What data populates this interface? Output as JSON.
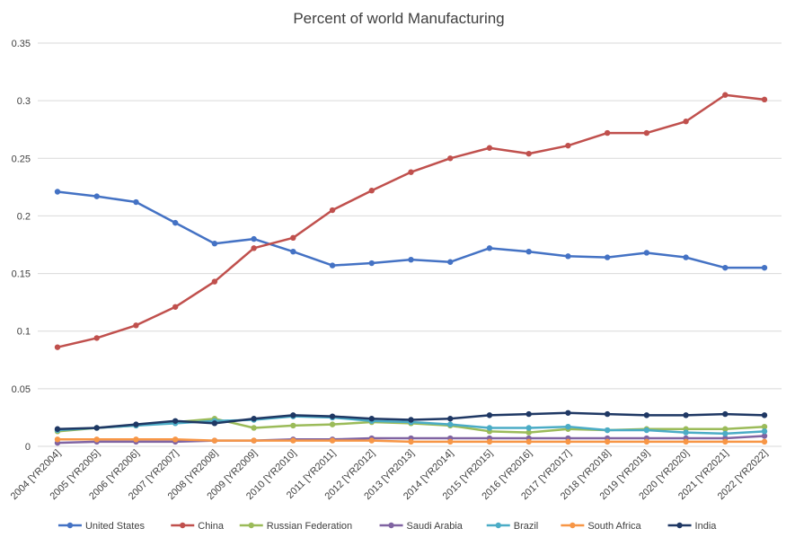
{
  "chart_data": {
    "type": "line",
    "title": "Percent of world Manufacturing",
    "xlabel": "",
    "ylabel": "",
    "ylim": [
      0,
      0.35
    ],
    "yticks": [
      "0",
      "0.05",
      "0.1",
      "0.15",
      "0.2",
      "0.25",
      "0.3",
      "0.35"
    ],
    "grid": true,
    "legend_position": "bottom",
    "categories": [
      "2004 [YR2004]",
      "2005 [YR2005]",
      "2006 [YR2006]",
      "2007 [YR2007]",
      "2008 [YR2008]",
      "2009 [YR2009]",
      "2010 [YR2010]",
      "2011 [YR2011]",
      "2012 [YR2012]",
      "2013 [YR2013]",
      "2014 [YR2014]",
      "2015 [YR2015]",
      "2016 [YR2016]",
      "2017 [YR2017]",
      "2018 [YR2018]",
      "2019 [YR2019]",
      "2020 [YR2020]",
      "2021 [YR2021]",
      "2022 [YR2022]"
    ],
    "series": [
      {
        "name": "United States",
        "color": "#4472c4",
        "values": [
          0.221,
          0.217,
          0.212,
          0.194,
          0.176,
          0.18,
          0.169,
          0.157,
          0.159,
          0.162,
          0.16,
          0.172,
          0.169,
          0.165,
          0.164,
          0.168,
          0.164,
          0.155,
          0.155
        ]
      },
      {
        "name": "China",
        "color": "#c0504d",
        "values": [
          0.086,
          0.094,
          0.105,
          0.121,
          0.143,
          0.172,
          0.181,
          0.205,
          0.222,
          0.238,
          0.25,
          0.259,
          0.254,
          0.261,
          0.272,
          0.272,
          0.282,
          0.305,
          0.301
        ]
      },
      {
        "name": "Russian Federation",
        "color": "#9bbb59",
        "values": [
          0.013,
          0.016,
          0.018,
          0.021,
          0.024,
          0.016,
          0.018,
          0.019,
          0.021,
          0.02,
          0.018,
          0.013,
          0.012,
          0.015,
          0.014,
          0.015,
          0.015,
          0.015,
          0.017
        ]
      },
      {
        "name": "Saudi Arabia",
        "color": "#8064a2",
        "values": [
          0.003,
          0.004,
          0.004,
          0.004,
          0.005,
          0.005,
          0.006,
          0.006,
          0.007,
          0.007,
          0.007,
          0.007,
          0.007,
          0.007,
          0.007,
          0.007,
          0.007,
          0.007,
          0.009
        ]
      },
      {
        "name": "Brazil",
        "color": "#4bacc6",
        "values": [
          0.014,
          0.016,
          0.018,
          0.02,
          0.022,
          0.023,
          0.026,
          0.025,
          0.022,
          0.021,
          0.019,
          0.016,
          0.016,
          0.017,
          0.014,
          0.014,
          0.012,
          0.011,
          0.013
        ]
      },
      {
        "name": "South Africa",
        "color": "#f79646",
        "values": [
          0.006,
          0.006,
          0.006,
          0.006,
          0.005,
          0.005,
          0.005,
          0.005,
          0.005,
          0.004,
          0.004,
          0.004,
          0.004,
          0.004,
          0.004,
          0.004,
          0.004,
          0.004,
          0.004
        ]
      },
      {
        "name": "India",
        "color": "#1f3864",
        "values": [
          0.015,
          0.016,
          0.019,
          0.022,
          0.02,
          0.024,
          0.027,
          0.026,
          0.024,
          0.023,
          0.024,
          0.027,
          0.028,
          0.029,
          0.028,
          0.027,
          0.027,
          0.028,
          0.027
        ]
      }
    ]
  }
}
